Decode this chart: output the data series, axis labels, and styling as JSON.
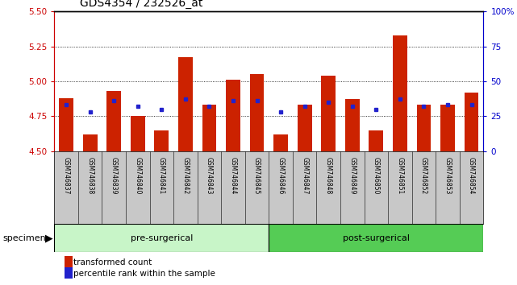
{
  "title": "GDS4354 / 232526_at",
  "samples": [
    "GSM746837",
    "GSM746838",
    "GSM746839",
    "GSM746840",
    "GSM746841",
    "GSM746842",
    "GSM746843",
    "GSM746844",
    "GSM746845",
    "GSM746846",
    "GSM746847",
    "GSM746848",
    "GSM746849",
    "GSM746850",
    "GSM746851",
    "GSM746852",
    "GSM746853",
    "GSM746854"
  ],
  "red_values": [
    4.88,
    4.62,
    4.93,
    4.75,
    4.65,
    5.17,
    4.83,
    5.01,
    5.05,
    4.62,
    4.83,
    5.04,
    4.87,
    4.65,
    5.33,
    4.83,
    4.83,
    4.92
  ],
  "blue_values": [
    4.83,
    4.78,
    4.86,
    4.82,
    4.8,
    4.87,
    4.82,
    4.86,
    4.86,
    4.78,
    4.82,
    4.85,
    4.82,
    4.8,
    4.87,
    4.82,
    4.83,
    4.83
  ],
  "ymin": 4.5,
  "ymax": 5.5,
  "yticks": [
    4.5,
    4.75,
    5.0,
    5.25,
    5.5
  ],
  "y2labels": [
    "0",
    "25",
    "50",
    "75",
    "100%"
  ],
  "group1_label": "pre-surgerical",
  "group2_label": "post-surgerical",
  "group1_count": 9,
  "pre_surgical_color": "#c8f5c8",
  "post_surgical_color": "#55cc55",
  "bar_color": "#cc2200",
  "blue_color": "#2222cc",
  "bar_width": 0.6,
  "specimen_label": "specimen",
  "legend_red": "transformed count",
  "legend_blue": "percentile rank within the sample",
  "title_fontsize": 10,
  "axis_color_left": "#cc0000",
  "axis_color_right": "#0000cc",
  "tick_label_area_color": "#c8c8c8"
}
